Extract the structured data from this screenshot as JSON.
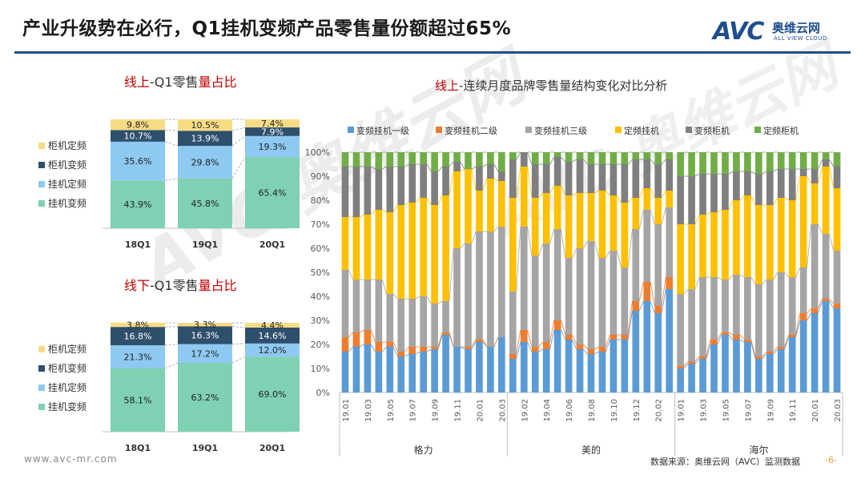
{
  "header": {
    "title": "产业升级势在必行，Q1挂机变频产品零售量份额超过65%",
    "logo_text": "AVC",
    "logo_cn": "奥维云网",
    "logo_en": "ALL VIEW CLOUD"
  },
  "colors": {
    "hang_var": "#7fd1b3",
    "hang_fixed": "#8ec9f2",
    "cab_var": "#2f506d",
    "cab_fixed": "#f7dc86",
    "c_lvl1": "#5b9bd5",
    "c_lvl2": "#ed7d31",
    "c_lvl3": "#a5a5a5",
    "c_fixed_hang": "#ffc000",
    "c_var_cab": "#7f7f7f",
    "c_fixed_cab": "#70ad47",
    "title_red": "#c00000",
    "title_blue": "#1f4e8c"
  },
  "chart_data": [
    {
      "type": "bar",
      "stacked": true,
      "title_parts": [
        "线上",
        "-Q1零售",
        "量占比"
      ],
      "categories": [
        "18Q1",
        "19Q1",
        "20Q1"
      ],
      "legend": [
        "柜机定频",
        "柜机变频",
        "挂机定频",
        "挂机变频"
      ],
      "series": [
        {
          "name": "挂机变频",
          "values": [
            43.9,
            45.8,
            65.4
          ],
          "labels": [
            "43.9%",
            "45.8%",
            "65.4%"
          ]
        },
        {
          "name": "挂机定频",
          "values": [
            35.6,
            29.8,
            19.3
          ],
          "labels": [
            "35.6%",
            "29.8%",
            "19.3%"
          ]
        },
        {
          "name": "柜机变频",
          "values": [
            10.7,
            13.9,
            7.9
          ],
          "labels": [
            "10.7%",
            "13.9%",
            "7.9%"
          ]
        },
        {
          "name": "柜机定频",
          "values": [
            9.8,
            10.5,
            7.4
          ],
          "labels": [
            "9.8%",
            "10.5%",
            "7.4%"
          ]
        }
      ],
      "ylim": [
        0,
        100
      ]
    },
    {
      "type": "bar",
      "stacked": true,
      "title_parts": [
        "线下",
        "-Q1零售",
        "量占比"
      ],
      "categories": [
        "18Q1",
        "19Q1",
        "20Q1"
      ],
      "legend": [
        "柜机定频",
        "柜机变频",
        "挂机定频",
        "挂机变频"
      ],
      "series": [
        {
          "name": "挂机变频",
          "values": [
            58.1,
            63.2,
            69.0
          ],
          "labels": [
            "58.1%",
            "63.2%",
            "69.0%"
          ]
        },
        {
          "name": "挂机定频",
          "values": [
            21.3,
            17.2,
            12.0
          ],
          "labels": [
            "21.3%",
            "17.2%",
            "12.0%"
          ]
        },
        {
          "name": "柜机变频",
          "values": [
            16.8,
            16.3,
            14.6
          ],
          "labels": [
            "16.8%",
            "16.3%",
            "14.6%"
          ]
        },
        {
          "name": "柜机定频",
          "values": [
            3.8,
            3.3,
            4.4
          ],
          "labels": [
            "3.8%",
            "3.3%",
            "4.4%"
          ]
        }
      ],
      "ylim": [
        0,
        100
      ]
    },
    {
      "type": "bar",
      "stacked": true,
      "percent": true,
      "title_parts": [
        "线上",
        "-连续月度品牌零售量结构变化对比分析"
      ],
      "groups": [
        "格力",
        "美的",
        "海尔"
      ],
      "months": [
        "19.01",
        "19.02",
        "19.03",
        "19.04",
        "19.05",
        "19.06",
        "19.07",
        "19.08",
        "19.09",
        "19.10",
        "19.11",
        "19.12",
        "20.01",
        "20.02",
        "20.03"
      ],
      "tick_labels": [
        "19.01",
        "19.03",
        "19.05",
        "19.07",
        "19.09",
        "19.11",
        "20.01",
        "20.03"
      ],
      "tick_labels_midea": [
        "19.02",
        "19.04",
        "19.06",
        "19.08",
        "19.10",
        "19.12",
        "20.02"
      ],
      "series_names": [
        "变频挂机一级",
        "变频挂机二级",
        "变频挂机三级",
        "定频挂机",
        "变频柜机",
        "定频柜机"
      ],
      "y_ticks": [
        "0%",
        "10%",
        "20%",
        "30%",
        "40%",
        "50%",
        "60%",
        "70%",
        "80%",
        "90%",
        "100%"
      ],
      "data": {
        "格力": {
          "变频挂机一级": [
            17,
            19,
            20,
            17,
            19,
            15,
            16,
            17,
            18,
            24,
            19,
            18,
            21,
            19,
            23
          ],
          "变频挂机二级": [
            6,
            6,
            6,
            4,
            2,
            2,
            3,
            2,
            1,
            1,
            0,
            1,
            1,
            0,
            0
          ],
          "变频挂机三级": [
            28,
            22,
            21,
            26,
            20,
            22,
            20,
            21,
            18,
            13,
            41,
            43,
            45,
            48,
            46
          ],
          "定频挂机": [
            22,
            26,
            27,
            29,
            34,
            39,
            40,
            41,
            41,
            44,
            32,
            31,
            17,
            22,
            19
          ],
          "变频柜机": [
            21,
            21,
            20,
            17,
            19,
            16,
            16,
            14,
            14,
            12,
            4,
            0,
            10,
            6,
            4
          ],
          "定频柜机": [
            6,
            6,
            6,
            7,
            6,
            6,
            5,
            5,
            8,
            6,
            4,
            7,
            6,
            5,
            8
          ]
        },
        "美的": {
          "变频挂机一级": [
            14,
            21,
            17,
            18,
            26,
            22,
            18,
            16,
            17,
            22,
            22,
            34,
            38,
            33,
            43
          ],
          "变频挂机二级": [
            2,
            5,
            2,
            3,
            4,
            2,
            2,
            2,
            2,
            2,
            2,
            4,
            8,
            3,
            5
          ],
          "变频挂机三级": [
            26,
            43,
            38,
            41,
            38,
            32,
            40,
            45,
            37,
            35,
            28,
            30,
            30,
            34,
            29
          ],
          "定频挂机": [
            39,
            25,
            24,
            21,
            18,
            26,
            23,
            20,
            28,
            23,
            27,
            13,
            9,
            11,
            7
          ],
          "变频柜机": [
            16,
            6,
            14,
            12,
            12,
            14,
            14,
            12,
            11,
            13,
            16,
            16,
            12,
            14,
            13
          ],
          "定频柜机": [
            3,
            0,
            5,
            5,
            2,
            4,
            3,
            5,
            5,
            5,
            5,
            3,
            3,
            5,
            3
          ]
        },
        "海尔": {
          "变频挂机一级": [
            10,
            12,
            14,
            20,
            24,
            22,
            21,
            14,
            16,
            18,
            23,
            30,
            33,
            38,
            35
          ],
          "变频挂机二级": [
            1,
            1,
            1,
            2,
            1,
            2,
            1,
            1,
            1,
            1,
            1,
            3,
            2,
            1,
            2
          ],
          "变频挂机三级": [
            30,
            30,
            33,
            26,
            22,
            25,
            26,
            30,
            30,
            31,
            24,
            19,
            35,
            27,
            22
          ],
          "定频挂机": [
            29,
            27,
            26,
            27,
            29,
            31,
            34,
            33,
            31,
            31,
            32,
            38,
            17,
            28,
            26
          ],
          "变频柜机": [
            20,
            20,
            17,
            16,
            15,
            12,
            10,
            13,
            14,
            12,
            13,
            3,
            6,
            3,
            9
          ],
          "定频柜机": [
            10,
            10,
            9,
            9,
            9,
            8,
            8,
            9,
            8,
            7,
            7,
            7,
            7,
            3,
            6
          ]
        }
      }
    }
  ],
  "footer": {
    "website": "www.avc-mr.com",
    "source": "数据来源：奥维云网（AVC）监测数据",
    "page": "-6-"
  }
}
